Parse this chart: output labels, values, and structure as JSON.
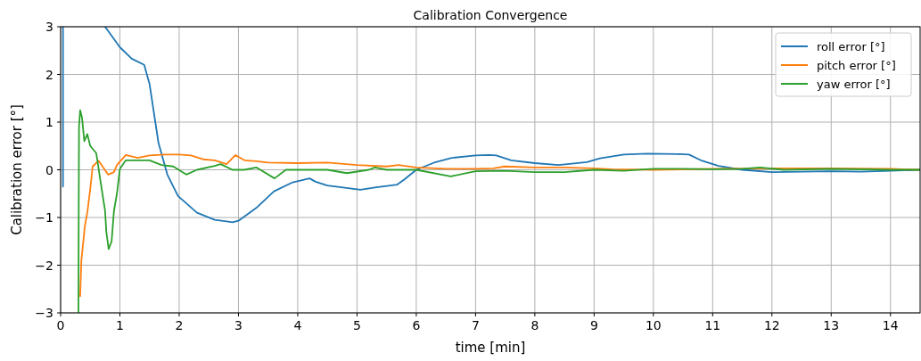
{
  "chart_data": {
    "type": "line",
    "title": "Calibration Convergence",
    "xlabel": "time [min]",
    "ylabel": "Calibration error [°]",
    "xlim": [
      0,
      14.5
    ],
    "ylim": [
      -3,
      3
    ],
    "xticks": [
      0,
      1,
      2,
      3,
      4,
      5,
      6,
      7,
      8,
      9,
      10,
      11,
      12,
      13,
      14
    ],
    "yticks": [
      -3,
      -2,
      -1,
      0,
      1,
      2,
      3
    ],
    "grid": true,
    "legend": "top right",
    "line_style": "solid",
    "marker": "none",
    "series": [
      {
        "name": "roll error [°]",
        "color": "#1f77b4",
        "x": [
          0.04,
          0.04,
          0.4,
          0.75,
          1.0,
          1.2,
          1.41,
          1.5,
          1.65,
          1.8,
          1.98,
          2.3,
          2.6,
          2.9,
          3.0,
          3.3,
          3.6,
          3.9,
          4.2,
          4.3,
          4.5,
          5.06,
          5.3,
          5.68,
          5.8,
          6.0,
          6.3,
          6.6,
          7.0,
          7.23,
          7.35,
          7.6,
          8.0,
          8.4,
          8.88,
          9.1,
          9.5,
          9.9,
          10.41,
          10.6,
          10.8,
          11.1,
          11.5,
          12.0,
          12.5,
          13.0,
          13.5,
          14.0,
          14.5
        ],
        "values": [
          -0.35,
          3,
          null,
          3,
          2.57,
          2.33,
          2.2,
          1.8,
          0.57,
          -0.1,
          -0.55,
          -0.9,
          -1.05,
          -1.1,
          -1.07,
          -0.8,
          -0.45,
          -0.27,
          -0.18,
          -0.25,
          -0.33,
          -0.42,
          -0.37,
          -0.31,
          -0.2,
          0.0,
          0.15,
          0.25,
          0.3,
          0.31,
          0.3,
          0.2,
          0.14,
          0.1,
          0.16,
          0.24,
          0.32,
          0.34,
          0.33,
          0.32,
          0.2,
          0.08,
          0.0,
          -0.05,
          -0.04,
          -0.03,
          -0.04,
          -0.02,
          0.0
        ]
      },
      {
        "name": "pitch error [°]",
        "color": "#ff7f0e",
        "x": [
          0.33,
          0.35,
          0.41,
          0.45,
          0.5,
          0.54,
          0.64,
          0.8,
          0.9,
          0.95,
          1.1,
          1.3,
          1.5,
          1.76,
          2.0,
          2.2,
          2.4,
          2.6,
          2.8,
          2.95,
          3.1,
          3.3,
          3.5,
          4.0,
          4.5,
          5.0,
          5.5,
          5.7,
          6.0,
          6.5,
          7.0,
          7.3,
          7.5,
          8.0,
          8.5,
          9.0,
          9.3,
          10.0,
          11.0,
          12.0,
          13.0,
          14.0,
          14.5
        ],
        "values": [
          -2.65,
          -1.9,
          -1.17,
          -0.9,
          -0.4,
          0.07,
          0.19,
          -0.1,
          -0.05,
          0.1,
          0.31,
          0.25,
          0.3,
          0.32,
          0.32,
          0.3,
          0.22,
          0.2,
          0.12,
          0.31,
          0.2,
          0.18,
          0.15,
          0.14,
          0.15,
          0.1,
          0.07,
          0.1,
          0.05,
          0.02,
          0.02,
          0.03,
          0.07,
          0.05,
          0.05,
          0.03,
          0.01,
          0.0,
          0.02,
          0.03,
          0.03,
          0.02,
          0.0
        ]
      },
      {
        "name": "yaw error [°]",
        "color": "#2ca02c",
        "x": [
          0.3,
          0.31,
          0.33,
          0.36,
          0.4,
          0.45,
          0.5,
          0.6,
          0.62,
          0.68,
          0.75,
          0.77,
          0.81,
          0.86,
          0.9,
          0.95,
          1.0,
          1.1,
          1.3,
          1.5,
          1.7,
          1.9,
          2.12,
          2.3,
          2.6,
          2.7,
          2.9,
          3.1,
          3.3,
          3.61,
          3.8,
          4.0,
          4.5,
          4.83,
          5.2,
          5.3,
          5.5,
          6.0,
          6.58,
          7.0,
          7.5,
          8.0,
          8.5,
          9.0,
          9.5,
          10.0,
          10.5,
          11.0,
          11.5,
          11.8,
          12.2,
          13.0,
          14.0,
          14.5
        ],
        "values": [
          -3,
          0.9,
          1.25,
          1.1,
          0.6,
          0.75,
          0.5,
          0.35,
          0.2,
          -0.3,
          -0.86,
          -1.29,
          -1.66,
          -1.5,
          -0.86,
          -0.5,
          0.02,
          0.2,
          0.2,
          0.2,
          0.1,
          0.07,
          -0.1,
          0.0,
          0.08,
          0.12,
          0.0,
          0.0,
          0.05,
          -0.18,
          0.0,
          0.0,
          0.0,
          -0.07,
          0.0,
          0.05,
          0.0,
          0.0,
          -0.14,
          -0.03,
          -0.02,
          -0.05,
          -0.05,
          0.0,
          -0.02,
          0.02,
          0.02,
          0.01,
          0.02,
          0.05,
          0.0,
          0.02,
          0.0,
          0.0
        ]
      }
    ]
  }
}
